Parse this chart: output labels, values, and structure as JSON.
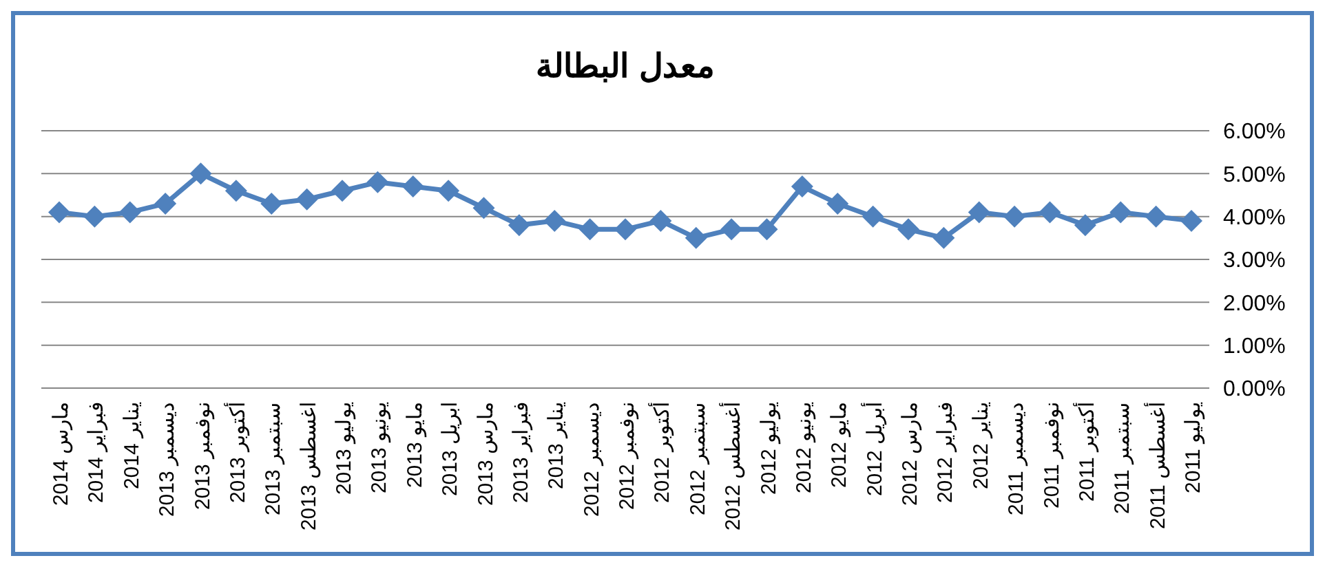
{
  "chart_data": {
    "type": "line",
    "title": "معدل البطالة",
    "categories": [
      "مارس 2014",
      "فبراير 2014",
      "يناير 2014",
      "ديسمبر 2013",
      "نوفمبر 2013",
      "أكتوبر 2013",
      "سبتمبر 2013",
      "اغسطس 2013",
      "يوليو 2013",
      "يونيو 2013",
      "مايو 2013",
      "ابريل 2013",
      "مارس 2013",
      "فبراير 2013",
      "يناير 2013",
      "ديسمبر 2012",
      "نوفمبر 2012",
      "أكتوبر 2012",
      "سبتمبر 2012",
      "أغسطس 2012",
      "يوليو 2012",
      "يونيو 2012",
      "مايو 2012",
      "أبريل 2012",
      "مارس 2012",
      "فبراير 2012",
      "يناير 2012",
      "ديسمبر 2011",
      "نوفمبر 2011",
      "أكتوبر 2011",
      "سبتمبر 2011",
      "أغسطس 2011",
      "يوليو 2011"
    ],
    "series": [
      {
        "color": "#4f81bd",
        "values": [
          4.1,
          4.0,
          4.1,
          4.3,
          5.0,
          4.6,
          4.3,
          4.4,
          4.6,
          4.8,
          4.7,
          4.6,
          4.2,
          3.8,
          3.9,
          3.7,
          3.7,
          3.9,
          3.5,
          3.7,
          3.7,
          4.7,
          4.3,
          4.0,
          3.7,
          3.5,
          4.1,
          4.0,
          4.1,
          3.8,
          4.1,
          4.0,
          3.9
        ]
      }
    ],
    "ylim": [
      0,
      6
    ],
    "yticks": [
      {
        "value": 0,
        "label": "0.00%"
      },
      {
        "value": 1,
        "label": "1.00%"
      },
      {
        "value": 2,
        "label": "2.00%"
      },
      {
        "value": 3,
        "label": "3.00%"
      },
      {
        "value": 4,
        "label": "4.00%"
      },
      {
        "value": 5,
        "label": "5.00%"
      },
      {
        "value": 6,
        "label": "6.00%"
      }
    ],
    "grid": "y",
    "marker": "diamond",
    "line_style": "solid"
  }
}
